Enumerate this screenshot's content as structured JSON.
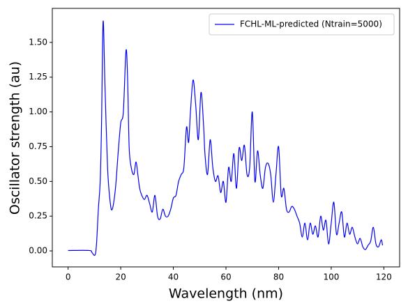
{
  "chart_data": {
    "type": "line",
    "xlabel": "Wavelength (nm)",
    "ylabel": "Oscillator strength (au)",
    "xlim": [
      -6,
      126
    ],
    "ylim": [
      -0.115,
      1.745
    ],
    "xticks": [
      0,
      20,
      40,
      60,
      80,
      100,
      120
    ],
    "yticks": [
      {
        "value": 0,
        "label": "0.00"
      },
      {
        "value": 0.25,
        "label": "0.25"
      },
      {
        "value": 0.5,
        "label": "0.50"
      },
      {
        "value": 0.75,
        "label": "0.75"
      },
      {
        "value": 1,
        "label": "1.00"
      },
      {
        "value": 1.25,
        "label": "1.25"
      },
      {
        "value": 1.5,
        "label": "1.50"
      }
    ],
    "legend": "upper right",
    "grid": false,
    "series": [
      {
        "name": "FCHL-ML-predicted (Ntrain=5000)",
        "color": "#0000ee",
        "x": [
          0,
          8,
          9,
          10.2,
          10.8,
          11.5,
          12.2,
          12.7,
          13.3,
          14,
          15,
          16,
          16.8,
          18,
          19,
          20,
          21,
          22,
          22.6,
          23.2,
          24,
          25,
          25.8,
          26.5,
          27.2,
          28,
          29,
          30,
          31,
          32,
          33,
          34,
          35,
          36,
          37,
          38,
          39,
          40,
          41,
          42,
          43,
          44,
          45,
          45.8,
          46.5,
          47.5,
          48.5,
          49.5,
          50.5,
          51.5,
          52,
          53,
          54,
          55,
          56,
          57,
          58,
          59,
          60,
          61,
          62,
          63,
          64,
          65,
          66,
          67,
          68,
          69,
          70,
          71,
          72,
          73,
          74,
          75,
          76,
          77,
          78,
          79,
          80,
          81,
          82,
          83,
          84,
          85,
          86,
          87,
          88,
          89,
          90,
          91,
          92,
          93,
          94,
          95,
          96,
          97,
          98,
          99,
          100,
          101,
          102,
          103,
          104,
          105,
          106,
          107,
          108,
          109,
          110,
          111,
          112,
          113,
          114,
          115,
          116,
          117,
          118,
          119,
          119.5
        ],
        "values": [
          0.003,
          0.003,
          -0.01,
          -0.03,
          0.05,
          0.3,
          0.5,
          0.9,
          1.65,
          1.2,
          0.6,
          0.35,
          0.3,
          0.45,
          0.7,
          0.92,
          1.0,
          1.44,
          1.25,
          0.75,
          0.6,
          0.55,
          0.64,
          0.55,
          0.45,
          0.4,
          0.37,
          0.4,
          0.34,
          0.28,
          0.4,
          0.25,
          0.23,
          0.3,
          0.25,
          0.25,
          0.3,
          0.38,
          0.4,
          0.5,
          0.55,
          0.6,
          0.89,
          0.78,
          1.0,
          1.23,
          1.05,
          0.8,
          1.14,
          0.9,
          0.7,
          0.55,
          0.8,
          0.6,
          0.5,
          0.54,
          0.42,
          0.5,
          0.35,
          0.6,
          0.5,
          0.7,
          0.45,
          0.74,
          0.65,
          0.76,
          0.55,
          0.6,
          1.0,
          0.5,
          0.72,
          0.55,
          0.45,
          0.6,
          0.63,
          0.55,
          0.35,
          0.55,
          0.75,
          0.4,
          0.45,
          0.3,
          0.28,
          0.32,
          0.3,
          0.25,
          0.2,
          0.1,
          0.2,
          0.08,
          0.2,
          0.12,
          0.18,
          0.1,
          0.25,
          0.15,
          0.22,
          0.05,
          0.2,
          0.35,
          0.12,
          0.2,
          0.28,
          0.1,
          0.2,
          0.12,
          0.17,
          0.1,
          0.05,
          0.09,
          0.03,
          0.01,
          0.04,
          0.07,
          0.17,
          0.05,
          0.03,
          0.08,
          0.04
        ]
      }
    ]
  }
}
